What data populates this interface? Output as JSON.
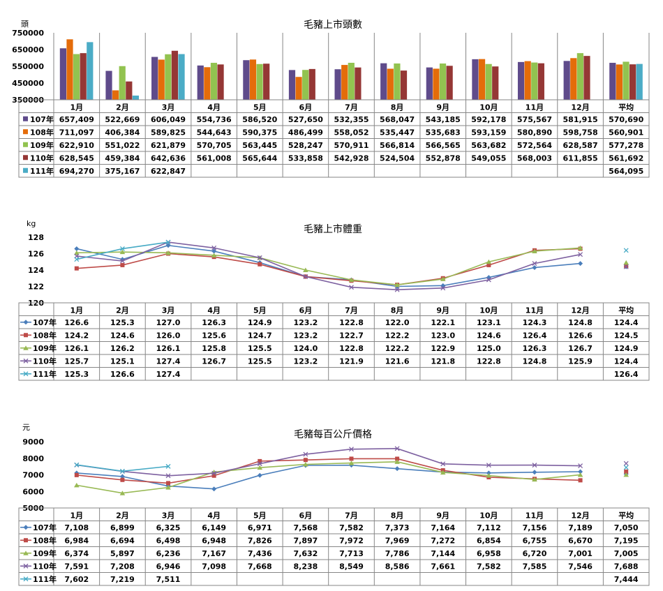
{
  "colors": [
    "#5f4b8b",
    "#e46c0a",
    "#92c350",
    "#953735",
    "#4bacc6"
  ],
  "line_colors": [
    "#4a7ebb",
    "#be4b48",
    "#98b954",
    "#7d60a0",
    "#46aac5"
  ],
  "series_names": [
    "107年",
    "108年",
    "109年",
    "110年",
    "111年"
  ],
  "categories": [
    "1月",
    "2月",
    "3月",
    "4月",
    "5月",
    "6月",
    "7月",
    "8月",
    "9月",
    "10月",
    "11月",
    "12月",
    "平均"
  ],
  "chart_data": [
    {
      "type": "bar",
      "title": "毛豬上市頭數",
      "unit_label": "頭",
      "ylim": [
        350000,
        750000
      ],
      "yticks": [
        "750000",
        "650000",
        "550000",
        "450000",
        "350000"
      ],
      "ytick_values": [
        750000,
        650000,
        550000,
        450000,
        350000
      ],
      "series": [
        {
          "name": "107年",
          "values": [
            657409,
            522669,
            606049,
            554736,
            586520,
            527650,
            532355,
            568047,
            543185,
            592178,
            575567,
            581915,
            570690
          ]
        },
        {
          "name": "108年",
          "values": [
            711097,
            406384,
            589825,
            544643,
            590375,
            486499,
            558052,
            535447,
            535683,
            593159,
            580890,
            598758,
            560901
          ]
        },
        {
          "name": "109年",
          "values": [
            622910,
            551022,
            621879,
            570705,
            563445,
            528247,
            570911,
            566814,
            566565,
            563682,
            572564,
            628587,
            577278
          ]
        },
        {
          "name": "110年",
          "values": [
            628545,
            459384,
            642636,
            561008,
            565644,
            533858,
            542928,
            524504,
            552878,
            549055,
            568003,
            611855,
            561692
          ]
        },
        {
          "name": "111年",
          "values": [
            694270,
            375167,
            622847,
            null,
            null,
            null,
            null,
            null,
            null,
            null,
            null,
            null,
            564095
          ]
        }
      ],
      "table": [
        [
          "657,409",
          "522,669",
          "606,049",
          "554,736",
          "586,520",
          "527,650",
          "532,355",
          "568,047",
          "543,185",
          "592,178",
          "575,567",
          "581,915",
          "570,690"
        ],
        [
          "711,097",
          "406,384",
          "589,825",
          "544,643",
          "590,375",
          "486,499",
          "558,052",
          "535,447",
          "535,683",
          "593,159",
          "580,890",
          "598,758",
          "560,901"
        ],
        [
          "622,910",
          "551,022",
          "621,879",
          "570,705",
          "563,445",
          "528,247",
          "570,911",
          "566,814",
          "566,565",
          "563,682",
          "572,564",
          "628,587",
          "577,278"
        ],
        [
          "628,545",
          "459,384",
          "642,636",
          "561,008",
          "565,644",
          "533,858",
          "542,928",
          "524,504",
          "552,878",
          "549,055",
          "568,003",
          "611,855",
          "561,692"
        ],
        [
          "694,270",
          "375,167",
          "622,847",
          "",
          "",
          "",
          "",
          "",
          "",
          "",
          "",
          "",
          "564,095"
        ]
      ]
    },
    {
      "type": "line",
      "title": "毛豬上市體重",
      "unit_label": "kg",
      "ylim": [
        120,
        128
      ],
      "yticks": [
        "128",
        "126",
        "124",
        "122",
        "120"
      ],
      "ytick_values": [
        128,
        126,
        124,
        122,
        120
      ],
      "series": [
        {
          "name": "107年",
          "values": [
            126.6,
            125.3,
            127.0,
            126.3,
            124.9,
            123.2,
            122.8,
            122.0,
            122.1,
            123.1,
            124.3,
            124.8,
            124.4
          ]
        },
        {
          "name": "108年",
          "values": [
            124.2,
            124.6,
            126.0,
            125.6,
            124.7,
            123.2,
            122.7,
            122.2,
            123.0,
            124.6,
            126.4,
            126.6,
            124.5
          ]
        },
        {
          "name": "109年",
          "values": [
            126.1,
            126.2,
            126.1,
            125.8,
            125.5,
            124.0,
            122.8,
            122.2,
            122.9,
            125.0,
            126.3,
            126.7,
            124.9
          ]
        },
        {
          "name": "110年",
          "values": [
            125.7,
            125.1,
            127.4,
            126.7,
            125.5,
            123.2,
            121.9,
            121.6,
            121.8,
            122.8,
            124.8,
            125.9,
            124.4
          ]
        },
        {
          "name": "111年",
          "values": [
            125.3,
            126.6,
            127.4,
            null,
            null,
            null,
            null,
            null,
            null,
            null,
            null,
            null,
            126.4
          ]
        }
      ],
      "table": [
        [
          "126.6",
          "125.3",
          "127.0",
          "126.3",
          "124.9",
          "123.2",
          "122.8",
          "122.0",
          "122.1",
          "123.1",
          "124.3",
          "124.8",
          "124.4"
        ],
        [
          "124.2",
          "124.6",
          "126.0",
          "125.6",
          "124.7",
          "123.2",
          "122.7",
          "122.2",
          "123.0",
          "124.6",
          "126.4",
          "126.6",
          "124.5"
        ],
        [
          "126.1",
          "126.2",
          "126.1",
          "125.8",
          "125.5",
          "124.0",
          "122.8",
          "122.2",
          "122.9",
          "125.0",
          "126.3",
          "126.7",
          "124.9"
        ],
        [
          "125.7",
          "125.1",
          "127.4",
          "126.7",
          "125.5",
          "123.2",
          "121.9",
          "121.6",
          "121.8",
          "122.8",
          "124.8",
          "125.9",
          "124.4"
        ],
        [
          "125.3",
          "126.6",
          "127.4",
          "",
          "",
          "",
          "",
          "",
          "",
          "",
          "",
          "",
          "126.4"
        ]
      ]
    },
    {
      "type": "line",
      "title": "毛豬每百公斤價格",
      "unit_label": "元",
      "ylim": [
        5000,
        9000
      ],
      "yticks": [
        "9000",
        "8000",
        "7000",
        "6000",
        "5000"
      ],
      "ytick_values": [
        9000,
        8000,
        7000,
        6000,
        5000
      ],
      "series": [
        {
          "name": "107年",
          "values": [
            7108,
            6899,
            6325,
            6149,
            6971,
            7568,
            7582,
            7373,
            7164,
            7112,
            7156,
            7189,
            7050
          ]
        },
        {
          "name": "108年",
          "values": [
            6984,
            6694,
            6498,
            6948,
            7826,
            7897,
            7972,
            7969,
            7272,
            6854,
            6755,
            6670,
            7195
          ]
        },
        {
          "name": "109年",
          "values": [
            6374,
            5897,
            6236,
            7167,
            7436,
            7632,
            7713,
            7786,
            7144,
            6958,
            6720,
            7001,
            7005
          ]
        },
        {
          "name": "110年",
          "values": [
            7591,
            7208,
            6946,
            7098,
            7668,
            8238,
            8549,
            8586,
            7661,
            7582,
            7585,
            7546,
            7688
          ]
        },
        {
          "name": "111年",
          "values": [
            7602,
            7219,
            7511,
            null,
            null,
            null,
            null,
            null,
            null,
            null,
            null,
            null,
            7444
          ]
        }
      ],
      "table": [
        [
          "7,108",
          "6,899",
          "6,325",
          "6,149",
          "6,971",
          "7,568",
          "7,582",
          "7,373",
          "7,164",
          "7,112",
          "7,156",
          "7,189",
          "7,050"
        ],
        [
          "6,984",
          "6,694",
          "6,498",
          "6,948",
          "7,826",
          "7,897",
          "7,972",
          "7,969",
          "7,272",
          "6,854",
          "6,755",
          "6,670",
          "7,195"
        ],
        [
          "6,374",
          "5,897",
          "6,236",
          "7,167",
          "7,436",
          "7,632",
          "7,713",
          "7,786",
          "7,144",
          "6,958",
          "6,720",
          "7,001",
          "7,005"
        ],
        [
          "7,591",
          "7,208",
          "6,946",
          "7,098",
          "7,668",
          "8,238",
          "8,549",
          "8,586",
          "7,661",
          "7,582",
          "7,585",
          "7,546",
          "7,688"
        ],
        [
          "7,602",
          "7,219",
          "7,511",
          "",
          "",
          "",
          "",
          "",
          "",
          "",
          "",
          "",
          "7,444"
        ]
      ]
    }
  ]
}
